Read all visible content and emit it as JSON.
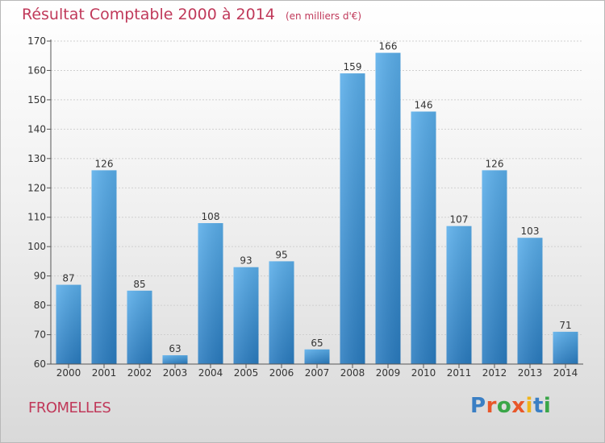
{
  "title": "Résultat Comptable 2000 à 2014",
  "subtitle": "(en milliers d'€)",
  "place": "FROMELLES",
  "logo": {
    "text": "Proxiti",
    "letter_colors": [
      "#3a7fc4",
      "#e8572a",
      "#3aa648",
      "#e8572a",
      "#f0b51b",
      "#3a7fc4",
      "#3aa648"
    ]
  },
  "colors": {
    "title": "#c0395a",
    "bar_top": "#5aaeea",
    "bar_bottom": "#2a7cc0",
    "axis": "#555555",
    "grid": "#cfcfcf",
    "tick_text": "#333333"
  },
  "chart_data": {
    "type": "bar",
    "categories": [
      "2000",
      "2001",
      "2002",
      "2003",
      "2004",
      "2005",
      "2006",
      "2007",
      "2008",
      "2009",
      "2010",
      "2011",
      "2012",
      "2013",
      "2014"
    ],
    "values": [
      87,
      126,
      85,
      63,
      108,
      93,
      95,
      65,
      159,
      166,
      146,
      107,
      126,
      103,
      71
    ],
    "title": "Résultat Comptable 2000 à 2014",
    "xlabel": "",
    "ylabel": "",
    "ylim": [
      60,
      170
    ],
    "yticks": [
      60,
      70,
      80,
      90,
      100,
      110,
      120,
      130,
      140,
      150,
      160,
      170
    ],
    "grid": true,
    "data_labels": true
  }
}
